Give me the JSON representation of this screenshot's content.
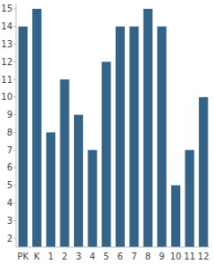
{
  "chart_data": {
    "type": "bar",
    "categories": [
      "PK",
      "K",
      "1",
      "2",
      "3",
      "4",
      "5",
      "6",
      "7",
      "8",
      "9",
      "10",
      "11",
      "12"
    ],
    "values": [
      14,
      15,
      8,
      11,
      9,
      7,
      12,
      14,
      14,
      15,
      14,
      5,
      7,
      10
    ],
    "color": "#346388",
    "ylim": [
      1.5,
      15.3
    ],
    "yticks": [
      2,
      3,
      4,
      5,
      6,
      7,
      8,
      9,
      10,
      11,
      12,
      13,
      14,
      15
    ],
    "grid": false
  }
}
